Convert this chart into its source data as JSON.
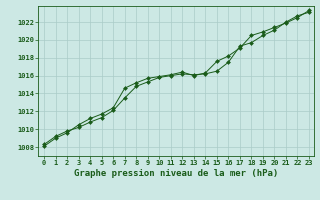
{
  "title": "Graphe pression niveau de la mer (hPa)",
  "background_color": "#cce8e4",
  "grid_color": "#aaccc8",
  "line_color": "#1a5c1a",
  "marker_color": "#1a5c1a",
  "xlim_min": -0.5,
  "xlim_max": 23.4,
  "ylim_min": 1007.0,
  "ylim_max": 1023.8,
  "yticks": [
    1008,
    1010,
    1012,
    1014,
    1016,
    1018,
    1020,
    1022
  ],
  "xticks": [
    0,
    1,
    2,
    3,
    4,
    5,
    6,
    7,
    8,
    9,
    10,
    11,
    12,
    13,
    14,
    15,
    16,
    17,
    18,
    19,
    20,
    21,
    22,
    23
  ],
  "series1_x": [
    0,
    1,
    2,
    3,
    4,
    5,
    6,
    7,
    8,
    9,
    10,
    11,
    12,
    13,
    14,
    15,
    16,
    17,
    18,
    19,
    20,
    21,
    22,
    23
  ],
  "series1_y": [
    1008.3,
    1009.2,
    1009.8,
    1010.2,
    1010.8,
    1011.3,
    1012.1,
    1013.5,
    1014.8,
    1015.3,
    1015.8,
    1016.0,
    1016.2,
    1016.1,
    1016.2,
    1016.5,
    1017.5,
    1019.3,
    1019.7,
    1020.5,
    1021.1,
    1022.0,
    1022.7,
    1023.1
  ],
  "series2_x": [
    0,
    1,
    2,
    3,
    4,
    5,
    6,
    7,
    8,
    9,
    10,
    11,
    12,
    13,
    14,
    15,
    16,
    17,
    18,
    19,
    20,
    21,
    22,
    23
  ],
  "series2_y": [
    1008.1,
    1009.0,
    1009.6,
    1010.5,
    1011.2,
    1011.7,
    1012.4,
    1014.6,
    1015.2,
    1015.7,
    1015.9,
    1016.1,
    1016.4,
    1016.0,
    1016.3,
    1017.6,
    1018.2,
    1019.1,
    1020.5,
    1020.9,
    1021.4,
    1021.9,
    1022.5,
    1023.3
  ],
  "tick_fontsize": 5,
  "xlabel_fontsize": 6.5,
  "linewidth": 0.7,
  "markersize": 2.0
}
